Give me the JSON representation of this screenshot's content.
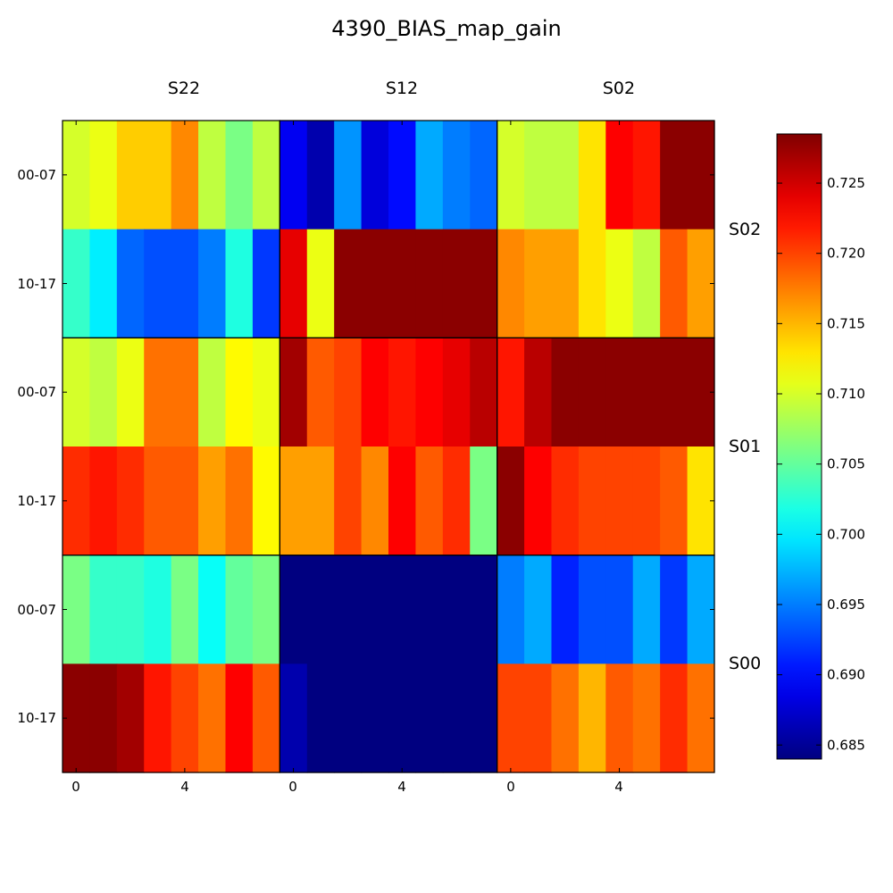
{
  "chart_data": {
    "type": "heatmap",
    "title": "4390_BIAS_map_gain",
    "column_groups": [
      "S22",
      "S12",
      "S02"
    ],
    "row_groups": [
      "S02",
      "S01",
      "S00"
    ],
    "row_labels": [
      "00-07",
      "10-17"
    ],
    "x_ticks": [
      0,
      4
    ],
    "colorbar": {
      "colormap": "jet",
      "min": 0.684,
      "max": 0.7285,
      "ticks": [
        0.685,
        0.69,
        0.695,
        0.7,
        0.705,
        0.71,
        0.715,
        0.72,
        0.725
      ],
      "tick_labels": [
        "0.685",
        "0.690",
        "0.695",
        "0.700",
        "0.705",
        "0.710",
        "0.715",
        "0.720",
        "0.725"
      ]
    },
    "values": [
      [
        0.71,
        0.711,
        0.714,
        0.714,
        0.717,
        0.709,
        0.706,
        0.709,
        0.689,
        0.686,
        0.696,
        0.688,
        0.69,
        0.697,
        0.695,
        0.694,
        0.71,
        0.709,
        0.709,
        0.713,
        0.723,
        0.722,
        0.728,
        0.728
      ],
      [
        0.703,
        0.7,
        0.694,
        0.693,
        0.693,
        0.695,
        0.702,
        0.692,
        0.724,
        0.711,
        0.728,
        0.728,
        0.728,
        0.728,
        0.728,
        0.728,
        0.717,
        0.716,
        0.716,
        0.713,
        0.711,
        0.709,
        0.719,
        0.716
      ],
      [
        0.71,
        0.709,
        0.711,
        0.718,
        0.718,
        0.709,
        0.712,
        0.711,
        0.727,
        0.719,
        0.72,
        0.723,
        0.722,
        0.723,
        0.724,
        0.726,
        0.722,
        0.726,
        0.728,
        0.728,
        0.728,
        0.728,
        0.728,
        0.728
      ],
      [
        0.721,
        0.722,
        0.721,
        0.719,
        0.719,
        0.716,
        0.718,
        0.712,
        0.716,
        0.716,
        0.72,
        0.717,
        0.723,
        0.719,
        0.721,
        0.706,
        0.728,
        0.723,
        0.721,
        0.72,
        0.72,
        0.72,
        0.719,
        0.713
      ],
      [
        0.706,
        0.703,
        0.703,
        0.702,
        0.706,
        0.701,
        0.705,
        0.706,
        0.684,
        0.684,
        0.684,
        0.684,
        0.684,
        0.684,
        0.684,
        0.684,
        0.695,
        0.697,
        0.691,
        0.693,
        0.693,
        0.697,
        0.692,
        0.697
      ],
      [
        0.728,
        0.728,
        0.727,
        0.722,
        0.72,
        0.718,
        0.723,
        0.719,
        0.686,
        0.684,
        0.684,
        0.684,
        0.684,
        0.684,
        0.684,
        0.684,
        0.72,
        0.72,
        0.718,
        0.715,
        0.719,
        0.718,
        0.721,
        0.718
      ]
    ]
  }
}
